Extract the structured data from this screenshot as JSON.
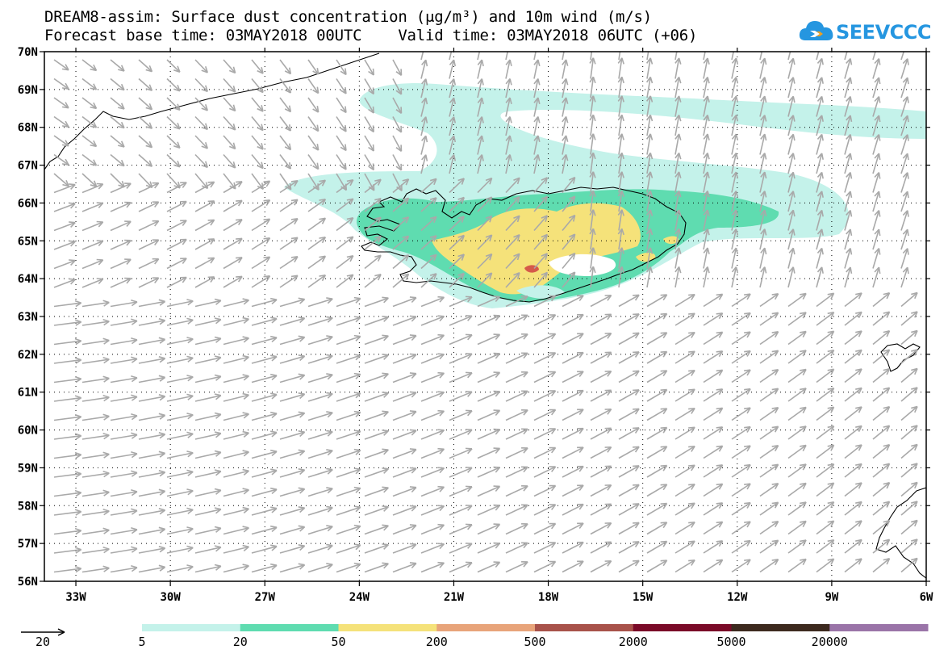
{
  "title": {
    "line1": "DREAM8-assim: Surface dust concentration (μg/m³) and 10m wind (m/s)",
    "line2": "Forecast base time: 03MAY2018 00UTC    Valid time: 03MAY2018 06UTC (+06)"
  },
  "logo": {
    "text": "SEEVCCC",
    "icon": "cloud-arrow-icon",
    "color": "#2596e0"
  },
  "map": {
    "lon_range": [
      -34,
      -6
    ],
    "lat_range": [
      56,
      70
    ],
    "lon_ticks": [
      {
        "value": -33,
        "label": "33W"
      },
      {
        "value": -30,
        "label": "30W"
      },
      {
        "value": -27,
        "label": "27W"
      },
      {
        "value": -24,
        "label": "24W"
      },
      {
        "value": -21,
        "label": "21W"
      },
      {
        "value": -18,
        "label": "18W"
      },
      {
        "value": -15,
        "label": "15W"
      },
      {
        "value": -12,
        "label": "12W"
      },
      {
        "value": -9,
        "label": "9W"
      },
      {
        "value": -6,
        "label": "6W"
      }
    ],
    "lat_ticks": [
      {
        "value": 70,
        "label": "70N"
      },
      {
        "value": 69,
        "label": "69N"
      },
      {
        "value": 68,
        "label": "68N"
      },
      {
        "value": 67,
        "label": "67N"
      },
      {
        "value": 66,
        "label": "66N"
      },
      {
        "value": 65,
        "label": "65N"
      },
      {
        "value": 64,
        "label": "64N"
      },
      {
        "value": 63,
        "label": "63N"
      },
      {
        "value": 62,
        "label": "62N"
      },
      {
        "value": 61,
        "label": "61N"
      },
      {
        "value": 60,
        "label": "60N"
      },
      {
        "value": 59,
        "label": "59N"
      },
      {
        "value": 58,
        "label": "58N"
      },
      {
        "value": 57,
        "label": "57N"
      },
      {
        "value": 56,
        "label": "56N"
      }
    ],
    "wind_arrow_color": "#a9a9a9",
    "coastline_color": "#000000"
  },
  "legend": {
    "wind_reference": "20",
    "colorbar": {
      "labels": [
        "5",
        "20",
        "50",
        "200",
        "500",
        "2000",
        "5000",
        "20000"
      ],
      "colors": [
        "#c4f2ea",
        "#5fdcb0",
        "#f5e27a",
        "#e8a47a",
        "#a8524a",
        "#7a0a28",
        "#3d2a1f",
        "#9a74a8"
      ]
    }
  },
  "dust": {
    "level_colors": {
      "5": "#c4f2ea",
      "20": "#5fdcb0",
      "50": "#f5e27a",
      "500": "#d55a4a"
    }
  }
}
